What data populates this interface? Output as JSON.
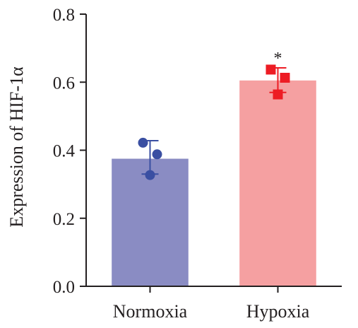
{
  "chart_data": {
    "type": "bar",
    "categories": [
      "Normoxia",
      "Hypoxia"
    ],
    "values": [
      0.375,
      0.605
    ],
    "error_low": [
      0.33,
      0.57
    ],
    "error_high": [
      0.428,
      0.642
    ],
    "points": [
      [
        0.422,
        0.388,
        0.327
      ],
      [
        0.637,
        0.613,
        0.564
      ]
    ],
    "bar_colors": [
      "#8a8cc3",
      "#f5a0a1"
    ],
    "point_colors": [
      "#3a4fa2",
      "#ed1c24"
    ],
    "point_markers": [
      "circle",
      "square"
    ],
    "ylabel": "Expression of HIF-1α",
    "xlabel": "",
    "ylim": [
      0,
      0.8
    ],
    "yticks": [
      "0.0",
      "0.2",
      "0.4",
      "0.6",
      "0.8"
    ],
    "annotations": [
      {
        "category": "Hypoxia",
        "text": "*"
      }
    ],
    "grid": false
  }
}
